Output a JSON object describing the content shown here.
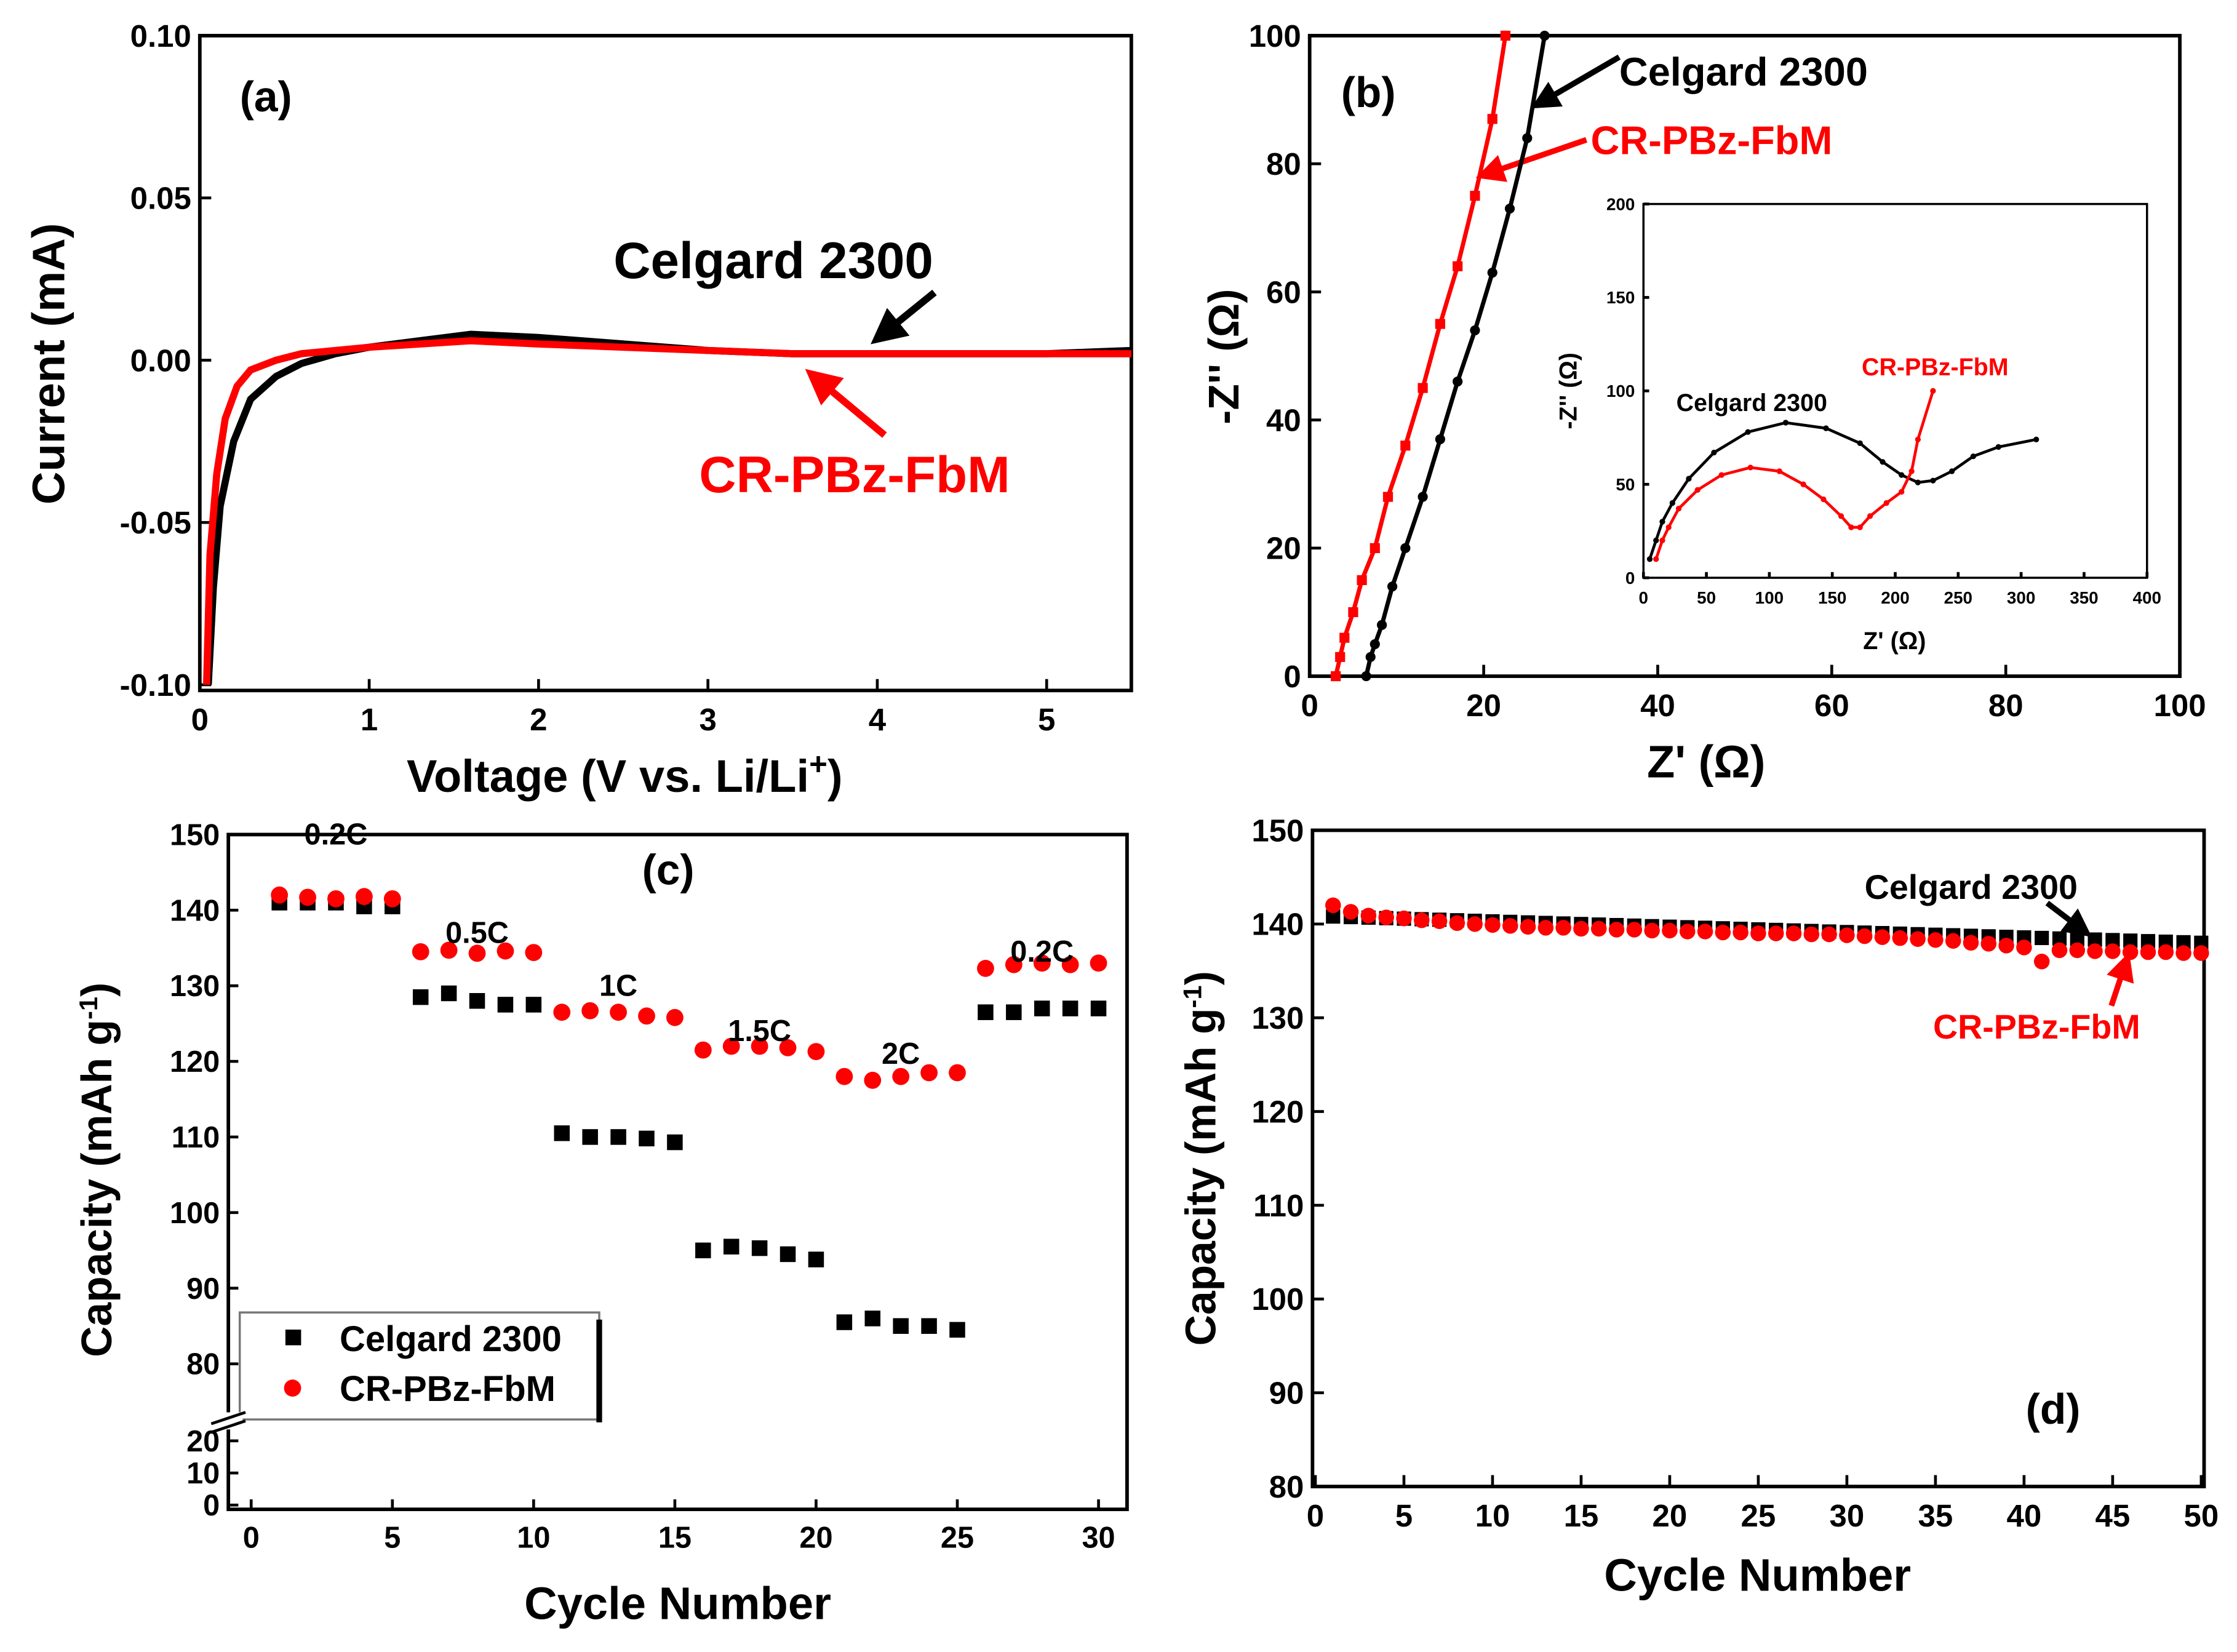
{
  "chart_data": [
    {
      "panel": "(a)",
      "type": "line",
      "xlabel": "Voltage (V vs. Li/Li+)",
      "ylabel": "Current (mA)",
      "xlim": [
        0,
        5.5
      ],
      "ylim": [
        -0.1,
        0.1
      ],
      "xticks": [
        "0",
        "1",
        "2",
        "3",
        "4",
        "5"
      ],
      "yticks": [
        "0.10",
        "0.05",
        "0.00",
        "-0.05",
        "-0.10"
      ],
      "series": [
        {
          "name": "Celgard 2300",
          "color": "#000000",
          "x": [
            0.05,
            0.08,
            0.12,
            0.2,
            0.3,
            0.45,
            0.6,
            0.8,
            1.0,
            1.3,
            1.6,
            2.0,
            2.5,
            3.0,
            3.5,
            4.0,
            4.5,
            5.0,
            5.5
          ],
          "y": [
            -0.1,
            -0.07,
            -0.045,
            -0.025,
            -0.012,
            -0.005,
            -0.001,
            0.002,
            0.004,
            0.006,
            0.008,
            0.007,
            0.005,
            0.003,
            0.002,
            0.002,
            0.002,
            0.002,
            0.003
          ]
        },
        {
          "name": "CR-PBz-FbM",
          "color": "#ff0000",
          "x": [
            0.04,
            0.06,
            0.1,
            0.15,
            0.22,
            0.3,
            0.45,
            0.6,
            0.8,
            1.0,
            1.3,
            1.6,
            2.0,
            2.5,
            3.0,
            3.5,
            4.0,
            4.5,
            5.0,
            5.5
          ],
          "y": [
            -0.1,
            -0.06,
            -0.035,
            -0.018,
            -0.008,
            -0.003,
            0.0,
            0.002,
            0.003,
            0.004,
            0.005,
            0.006,
            0.005,
            0.004,
            0.003,
            0.002,
            0.002,
            0.002,
            0.002,
            0.002
          ]
        }
      ],
      "annotations": [
        "Celgard 2300",
        "CR-PBz-FbM"
      ]
    },
    {
      "panel": "(b)",
      "type": "line",
      "xlabel": "Z' (Ω)",
      "ylabel": "-Z'' (Ω)",
      "xlim": [
        0,
        100
      ],
      "ylim": [
        0,
        100
      ],
      "xticks": [
        "0",
        "20",
        "40",
        "60",
        "80",
        "100"
      ],
      "yticks": [
        "0",
        "20",
        "40",
        "60",
        "80",
        "100"
      ],
      "series": [
        {
          "name": "Celgard 2300",
          "color": "#000000",
          "x": [
            6.5,
            7,
            7.5,
            8.3,
            9.5,
            11,
            13,
            15,
            17,
            19,
            21,
            23,
            25,
            27
          ],
          "y": [
            0,
            3,
            5,
            8,
            14,
            20,
            28,
            37,
            46,
            54,
            63,
            73,
            84,
            100
          ]
        },
        {
          "name": "CR-PBz-FbM",
          "color": "#ff0000",
          "x": [
            3,
            3.5,
            4,
            5,
            6,
            7.5,
            9,
            11,
            13,
            15,
            17,
            19,
            21,
            22.5
          ],
          "y": [
            0,
            3,
            6,
            10,
            15,
            20,
            28,
            36,
            45,
            55,
            64,
            75,
            87,
            100
          ]
        }
      ],
      "inset": {
        "xlabel": "Z' (Ω)",
        "ylabel": "-Z'' (Ω)",
        "xlim": [
          0,
          400
        ],
        "ylim": [
          0,
          200
        ],
        "xticks": [
          "0",
          "50",
          "100",
          "150",
          "200",
          "250",
          "300",
          "350",
          "400"
        ],
        "yticks": [
          "0",
          "50",
          "100",
          "150",
          "200"
        ],
        "series": [
          {
            "name": "Celgard 2300",
            "color": "#000000",
            "x": [
              5,
              10,
              15,
              23,
              36,
              56,
              83,
              113,
              145,
              172,
              190,
              205,
              218,
              230,
              245,
              262,
              282,
              312
            ],
            "y": [
              10,
              20,
              30,
              40,
              53,
              67,
              78,
              83,
              80,
              72,
              62,
              55,
              51,
              52,
              57,
              65,
              70,
              74
            ]
          },
          {
            "name": "CR-PBz-FbM",
            "color": "#ff0000",
            "x": [
              10,
              15,
              20,
              28,
              43,
              62,
              85,
              108,
              127,
              143,
              157,
              165,
              172,
              180,
              193,
              205,
              213,
              218,
              230
            ],
            "y": [
              10,
              20,
              27,
              37,
              47,
              55,
              59,
              57,
              50,
              42,
              33,
              27,
              27,
              33,
              40,
              46,
              57,
              74,
              100
            ]
          }
        ]
      }
    },
    {
      "panel": "(c)",
      "type": "scatter",
      "xlabel": "Cycle Number",
      "ylabel": "Capacity (mAh g-1)",
      "xlim": [
        -1,
        31
      ],
      "ylim": [
        0,
        150
      ],
      "axis_break": [
        20,
        80
      ],
      "xticks": [
        "0",
        "5",
        "10",
        "15",
        "20",
        "25",
        "30"
      ],
      "yticks": [
        "150",
        "140",
        "130",
        "120",
        "110",
        "100",
        "90",
        "80",
        "20",
        "10",
        "0"
      ],
      "rate_labels": [
        "0.2C",
        "0.5C",
        "1C",
        "1.5C",
        "2C",
        "0.2C"
      ],
      "legend": "bottom-left",
      "series": [
        {
          "name": "Celgard 2300",
          "color": "#000000",
          "marker": "square",
          "values": [
            141,
            141,
            141,
            140.5,
            140.5,
            128.5,
            129,
            128,
            127.5,
            127.5,
            110.5,
            110,
            110,
            109.8,
            109.3,
            95,
            95.5,
            95.3,
            94.5,
            93.8,
            85.5,
            86,
            85,
            85,
            84.5,
            126.5,
            126.5,
            127,
            127,
            127
          ]
        },
        {
          "name": "CR-PBz-FbM",
          "color": "#ff0000",
          "marker": "circle",
          "values": [
            142,
            141.7,
            141.5,
            141.8,
            141.5,
            134.5,
            134.7,
            134.3,
            134.6,
            134.4,
            126.5,
            126.7,
            126.5,
            126,
            125.8,
            121.5,
            122,
            122,
            121.8,
            121.3,
            118,
            117.5,
            118,
            118.5,
            118.5,
            132.3,
            132.8,
            133,
            132.8,
            133
          ]
        }
      ]
    },
    {
      "panel": "(d)",
      "type": "scatter",
      "xlabel": "Cycle Number",
      "ylabel": "Capacity (mAh g-1)",
      "xlim": [
        0,
        50
      ],
      "ylim": [
        80,
        150
      ],
      "xticks": [
        "0",
        "5",
        "10",
        "15",
        "20",
        "25",
        "30",
        "35",
        "40",
        "45",
        "50"
      ],
      "yticks": [
        "150",
        "140",
        "130",
        "120",
        "110",
        "100",
        "90",
        "80"
      ],
      "series": [
        {
          "name": "Celgard 2300",
          "color": "#000000",
          "marker": "square",
          "start": 140.8,
          "end": 138.0
        },
        {
          "name": "CR-PBz-FbM",
          "color": "#ff0000",
          "marker": "circle",
          "values": [
            142,
            141.3,
            140.9,
            140.7,
            140.6,
            140.4,
            140.3,
            140.1,
            140,
            139.9,
            139.8,
            139.7,
            139.6,
            139.6,
            139.5,
            139.5,
            139.4,
            139.4,
            139.3,
            139.3,
            139.2,
            139.2,
            139.1,
            139.1,
            139,
            139,
            139,
            138.9,
            138.9,
            138.8,
            138.7,
            138.6,
            138.5,
            138.4,
            138.3,
            138.2,
            138,
            137.9,
            137.7,
            137.5,
            136,
            137.2,
            137.2,
            137.1,
            137.1,
            137,
            137,
            137,
            136.9,
            136.9
          ]
        }
      ],
      "annotations": [
        "Celgard 2300",
        "CR-PBz-FbM"
      ]
    }
  ],
  "labels": {
    "a": "(a)",
    "b": "(b)",
    "c": "(c)",
    "d": "(d)",
    "celgard": "Celgard 2300",
    "cr": "CR-PBz-FbM",
    "a_x": "Voltage (V vs. Li/Li",
    "a_plus": "+",
    "a_xend": ")",
    "a_y": "Current (mA)",
    "b_x": "Z' (Ω)",
    "b_y": "-Z'' (Ω)",
    "cycle": "Cycle Number",
    "cap": "Capacity (mAh g",
    "cap_sup": "-1",
    "cap_end": ")"
  }
}
